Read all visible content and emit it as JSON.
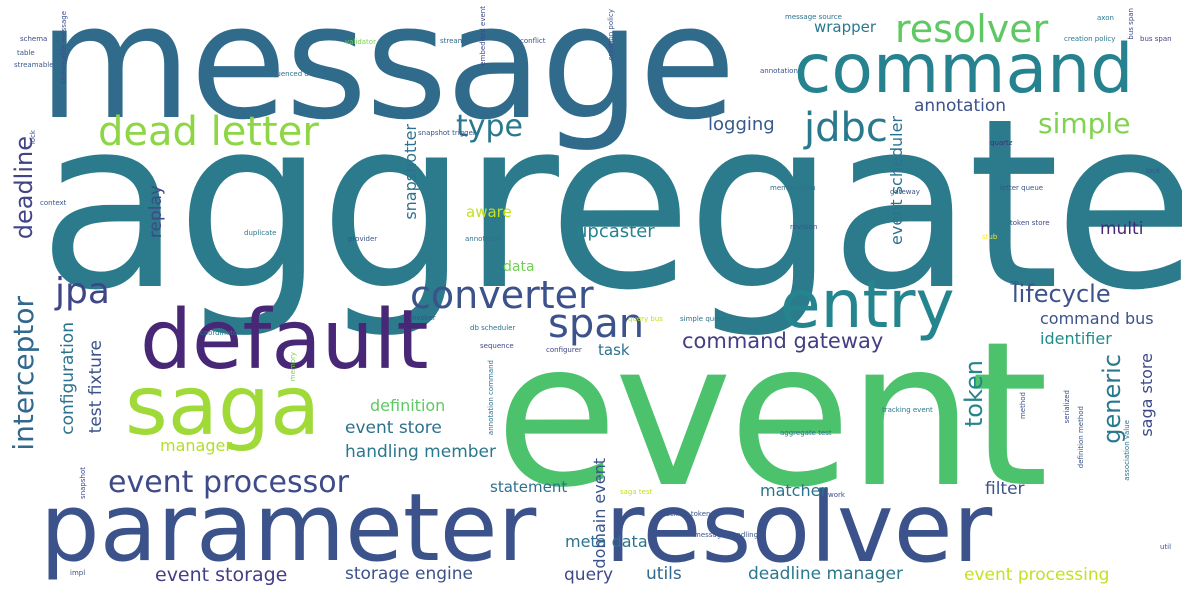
{
  "words": {
    "message": "message",
    "aggregate": "aggregate",
    "event": "event",
    "parameter": "parameter",
    "resolver_big": "resolver",
    "command_big": "command",
    "default": "default",
    "saga": "saga",
    "entry": "entry",
    "dead_letter": "dead letter",
    "converter": "converter",
    "span": "span",
    "jdbc": "jdbc",
    "jpa": "jpa",
    "resolver_med": "resolver",
    "type": "type",
    "simple": "simple",
    "event_processor": "event processor",
    "lifecycle": "lifecycle",
    "command_gateway": "command gateway",
    "logging": "logging",
    "annotation": "annotation",
    "wrapper": "wrapper",
    "aware": "aware",
    "upcaster": "upcaster",
    "data": "data",
    "multi": "multi",
    "command_bus": "command bus",
    "identifier": "identifier",
    "task": "task",
    "definition": "definition",
    "event_store": "event store",
    "handling_member": "handling member",
    "manager": "manager",
    "matcher": "matcher",
    "statement": "statement",
    "filter": "filter",
    "meta_data": "meta data",
    "query": "query",
    "utils": "utils",
    "event_storage": "event storage",
    "storage_engine": "storage engine",
    "deadline_manager": "deadline manager",
    "event_processing": "event processing",
    "deadline": "deadline",
    "interceptor": "interceptor",
    "configuration": "configuration",
    "test_fixture": "test fixture",
    "replay": "replay",
    "snapshotter": "snapshotter",
    "token": "token",
    "event_scheduler": "event scheduler",
    "generic": "generic",
    "saga_store": "saga store",
    "domain_event": "domain event"
  },
  "tiny_words": [
    "schema",
    "table",
    "streamable",
    "validator",
    "stream",
    "conflict",
    "message source",
    "annotation",
    "creation policy",
    "bus span",
    "sequenced dead",
    "snapshot trigger",
    "gateway",
    "quartz",
    "letter queue",
    "token store",
    "stub",
    "memoization",
    "revision",
    "duplicate",
    "provider",
    "annotated",
    "invoker",
    "db scheduler",
    "sequence",
    "configurer",
    "simple query",
    "query bus",
    "aggregate test",
    "work",
    "saga test",
    "tracking token",
    "message handling",
    "tracking event",
    "util",
    "field",
    "association value",
    "serialized",
    "impl",
    "coordinator",
    "lock",
    "axon",
    "context",
    "embedded event",
    "streamable message",
    "memory",
    "annotation command",
    "snapshot",
    "method",
    "definition method",
    "ap"
  ]
}
